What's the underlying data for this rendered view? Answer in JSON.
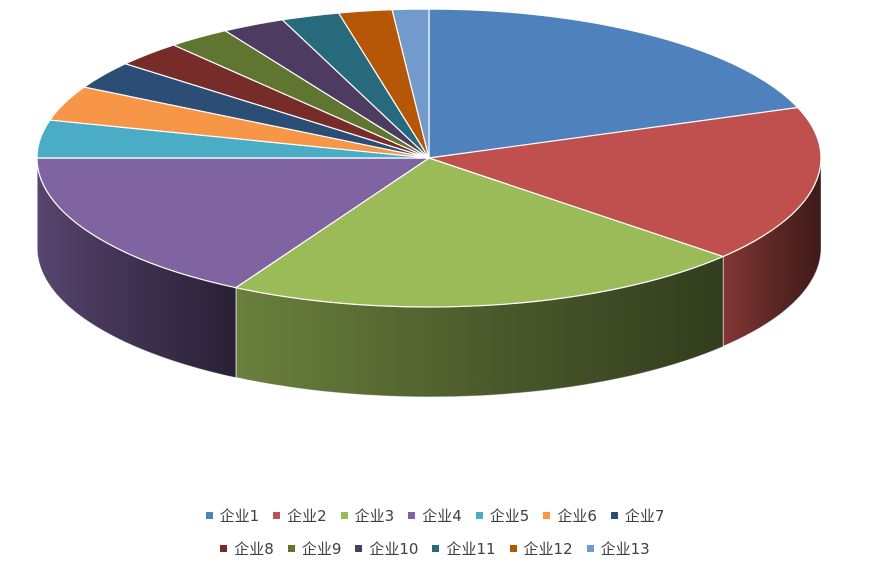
{
  "chart_data": {
    "type": "pie",
    "style": "3d",
    "title": "",
    "legend_position": "bottom",
    "categories": [
      "企业1",
      "企业2",
      "企业3",
      "企业4",
      "企业5",
      "企业6",
      "企业7",
      "企业8",
      "企业9",
      "企业10",
      "企业11",
      "企业12",
      "企业13"
    ],
    "values": [
      19.5,
      17.0,
      21.7,
      16.8,
      4.1,
      3.8,
      3.0,
      2.8,
      2.6,
      2.6,
      2.4,
      2.2,
      1.5
    ],
    "colors": [
      "#4F81BD",
      "#C0504D",
      "#9BBB59",
      "#8064A2",
      "#4BACC6",
      "#F79646",
      "#2C4D75",
      "#772C2A",
      "#5F7530",
      "#4D3B62",
      "#276A7C",
      "#B65708",
      "#729ACA"
    ]
  }
}
